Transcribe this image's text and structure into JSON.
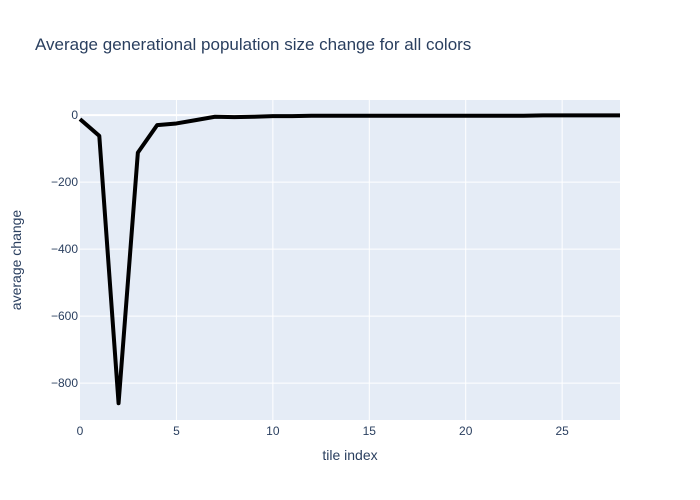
{
  "chart_data": {
    "type": "line",
    "title": "Average generational population size change for all colors",
    "xlabel": "tile index",
    "ylabel": "average change",
    "xlim": [
      0,
      28
    ],
    "ylim": [
      -910,
      45
    ],
    "x_ticks": [
      0,
      5,
      10,
      15,
      20,
      25
    ],
    "x_tick_labels": [
      "0",
      "5",
      "10",
      "15",
      "20",
      "25"
    ],
    "y_ticks": [
      0,
      -200,
      -400,
      -600,
      -800
    ],
    "y_tick_labels": [
      "0",
      "−200",
      "−400",
      "−600",
      "−800"
    ],
    "grid": true,
    "colors": {
      "plot_bg": "#e5ecf6",
      "grid": "#ffffff",
      "line": "#000000",
      "text": "#2a3f5f"
    },
    "series": [
      {
        "x": [
          0,
          1,
          2,
          3,
          4,
          5,
          6,
          7,
          8,
          9,
          10,
          11,
          12,
          13,
          14,
          15,
          16,
          17,
          18,
          19,
          20,
          21,
          22,
          23,
          24,
          25,
          26,
          27,
          28
        ],
        "values": [
          -12,
          -62,
          -860,
          -112,
          -30,
          -25,
          -15,
          -5,
          -6,
          -5,
          -3,
          -3,
          -2,
          -2,
          -2,
          -2,
          -2,
          -2,
          -2,
          -2,
          -2,
          -2,
          -2,
          -2,
          -1,
          -1,
          -1,
          -1,
          -1
        ]
      }
    ]
  }
}
